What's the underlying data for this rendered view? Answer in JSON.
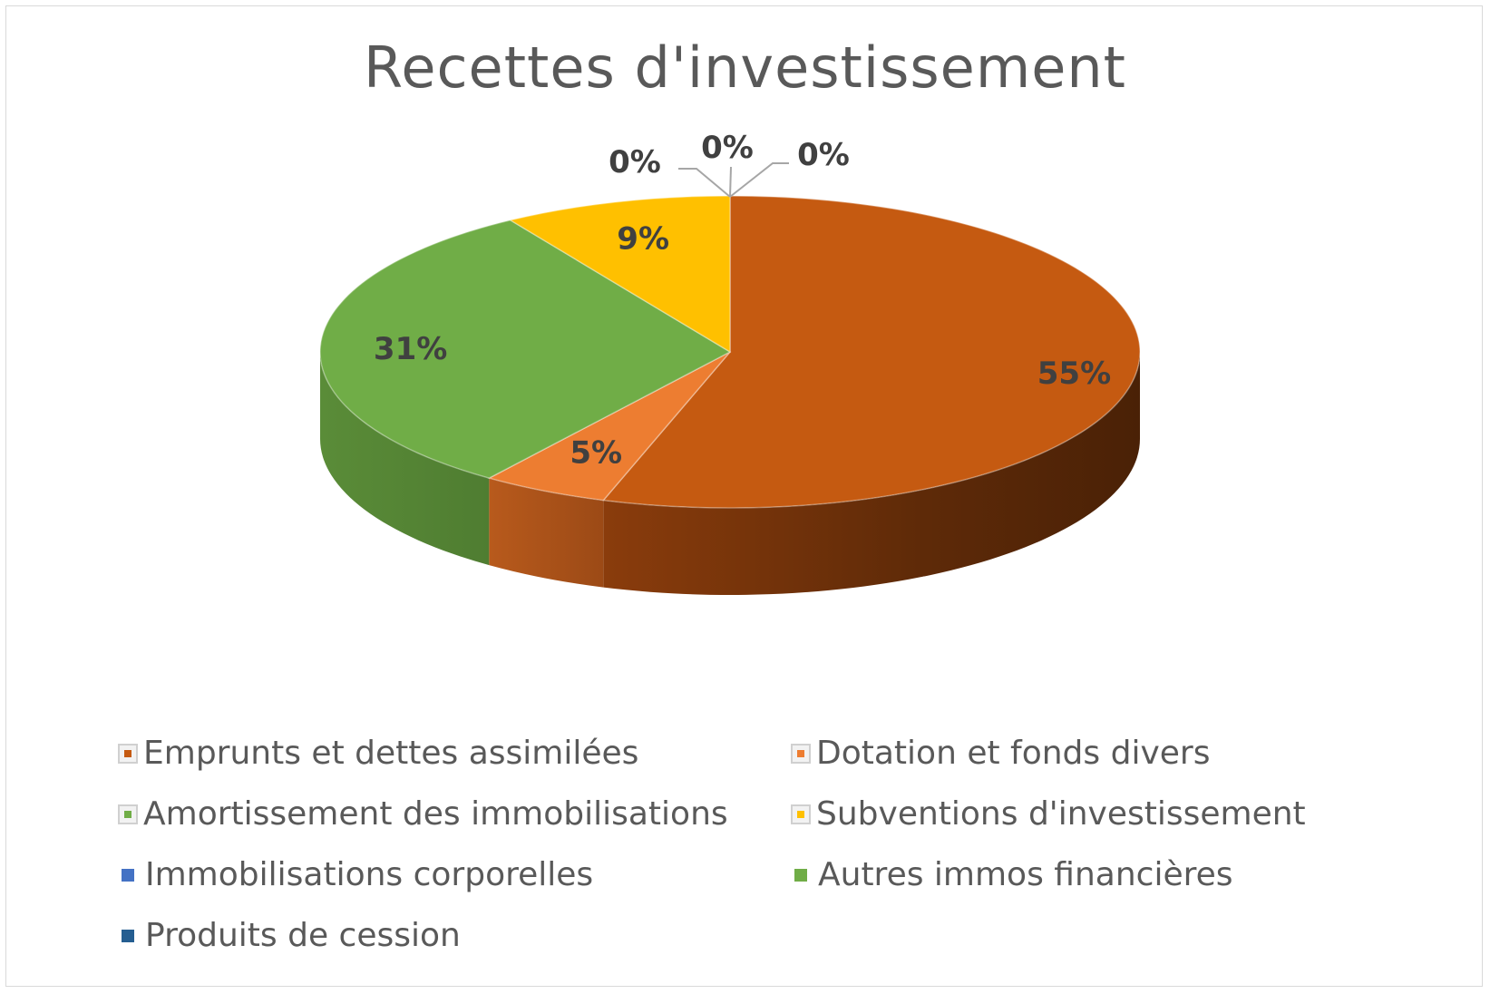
{
  "chart_data": {
    "type": "pie",
    "title": "Recettes d'investissement",
    "categories": [
      "Emprunts et dettes assimilées",
      "Dotation et fonds divers",
      "Amortissement des immobilisations",
      "Subventions d'investissement",
      "Immobilisations corporelles",
      "Autres immos financières",
      "Produits de cession"
    ],
    "values": [
      55,
      5,
      31,
      9,
      0,
      0,
      0
    ],
    "value_labels": [
      "55%",
      "5%",
      "31%",
      "9%",
      "0%",
      "0%",
      "0%"
    ],
    "colors": [
      "#C55A11",
      "#ED7D31",
      "#70AD47",
      "#FFC000",
      "#4472C4",
      "#70AD47",
      "#255E91"
    ],
    "legend_position": "bottom",
    "style": "3d"
  }
}
